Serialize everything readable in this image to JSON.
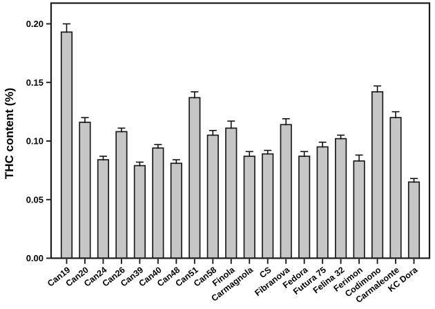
{
  "figure": {
    "background": "#ffffff",
    "bar_fill": "#c6c6c6",
    "bar_stroke": "#1b1b1b",
    "error_color": "#111111",
    "axis_color": "#1b1b1b",
    "text_color": "#000000"
  },
  "chart_data": {
    "type": "bar",
    "title": "",
    "xlabel": "",
    "ylabel": "THC content (%)",
    "ylim": [
      0,
      0.2177
    ],
    "yticks": [
      0,
      0.05,
      0.1,
      0.15,
      0.2
    ],
    "ytick_labels": [
      "0.00",
      "0.05",
      "0.10",
      "0.15",
      "0.20"
    ],
    "grid": false,
    "legend": "none",
    "error_bars": "upper",
    "categories": [
      "Can19",
      "Can20",
      "Can24",
      "Can26",
      "Can39",
      "Can40",
      "Can48",
      "Can51",
      "Can58",
      "Finola",
      "Carmagnola",
      "CS",
      "Fibranova",
      "Fedora",
      "Futura 75",
      "Felina 32",
      "Ferimon",
      "Codimono",
      "Carmaleonte",
      "KC Dora"
    ],
    "values": [
      0.193,
      0.116,
      0.084,
      0.108,
      0.079,
      0.094,
      0.081,
      0.137,
      0.105,
      0.111,
      0.087,
      0.089,
      0.114,
      0.087,
      0.095,
      0.102,
      0.083,
      0.142,
      0.12,
      0.065
    ],
    "errors": [
      0.007,
      0.004,
      0.003,
      0.003,
      0.003,
      0.003,
      0.003,
      0.005,
      0.004,
      0.006,
      0.004,
      0.003,
      0.005,
      0.004,
      0.004,
      0.003,
      0.005,
      0.005,
      0.005,
      0.003
    ]
  }
}
